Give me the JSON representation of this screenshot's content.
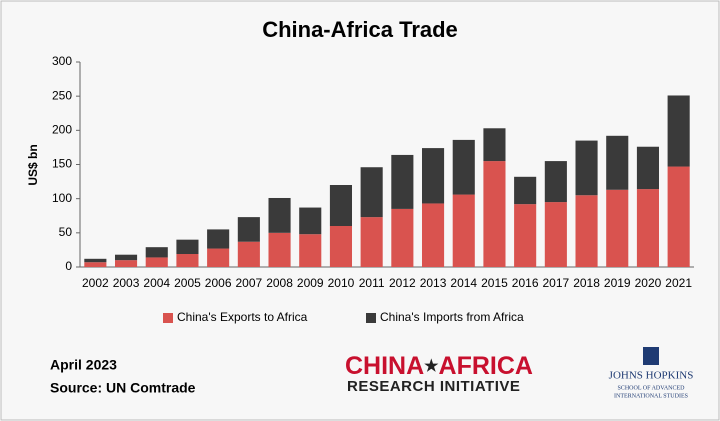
{
  "chart_data": {
    "type": "stacked-bar",
    "title": "China-Africa Trade",
    "y_label": "US$ bn",
    "categories": [
      "2002",
      "2003",
      "2004",
      "2005",
      "2006",
      "2007",
      "2008",
      "2009",
      "2010",
      "2011",
      "2012",
      "2013",
      "2014",
      "2015",
      "2016",
      "2017",
      "2018",
      "2019",
      "2020",
      "2021"
    ],
    "series": [
      {
        "name": "China's Exports to Africa",
        "color": "#d9534f",
        "values": [
          7,
          10,
          14,
          19,
          27,
          37,
          50,
          48,
          60,
          73,
          85,
          93,
          106,
          155,
          92,
          95,
          105,
          113,
          114,
          147
        ]
      },
      {
        "name": "China's Imports from Africa",
        "color": "#3a3a3a",
        "values": [
          5,
          8,
          15,
          21,
          28,
          36,
          51,
          39,
          60,
          73,
          79,
          81,
          80,
          48,
          40,
          60,
          80,
          79,
          62,
          104
        ]
      }
    ],
    "ylim": [
      0,
      300
    ],
    "yticks": [
      0,
      50,
      100,
      150,
      200,
      250,
      300
    ],
    "grid": false,
    "legend": "bottom"
  },
  "footer": {
    "date": "April 2023",
    "source": "Source: UN Comtrade",
    "logo_main_1": "CHINA",
    "logo_star": "★",
    "logo_main_2": "AFRICA",
    "logo_sub": "RESEARCH INITIATIVE",
    "jh_title": "JOHNS HOPKINS",
    "jh_sub_1": "SCHOOL OF ADVANCED",
    "jh_sub_2": "INTERNATIONAL STUDIES"
  }
}
